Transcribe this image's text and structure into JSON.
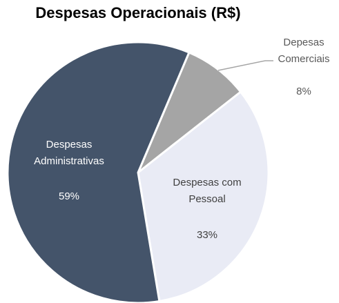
{
  "chart_data": {
    "type": "pie",
    "title": "Despesas Operacionais (R$)",
    "categories": [
      "Depesas Comerciais",
      "Despesas com Pessoal",
      "Despesas Administrativas"
    ],
    "values": [
      8,
      33,
      59
    ],
    "value_labels": [
      "8%",
      "33%",
      "59%"
    ],
    "colors": [
      "#a5a5a5",
      "#e9ebf5",
      "#44546a"
    ]
  }
}
